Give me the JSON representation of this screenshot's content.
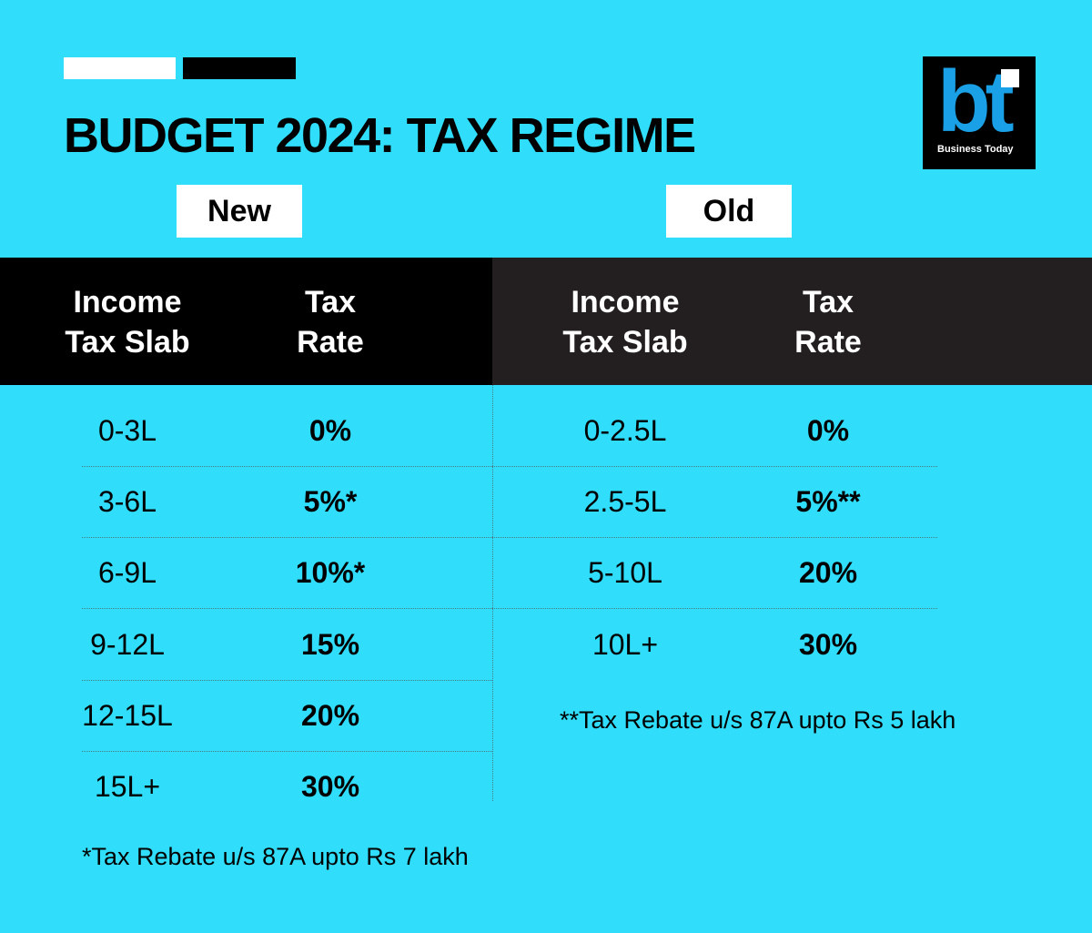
{
  "header": {
    "title": "BUDGET 2024: TAX REGIME"
  },
  "logo": {
    "mark": "bt",
    "name": "Business Today"
  },
  "tables": [
    {
      "label": "New",
      "columns": [
        "Income Tax Slab",
        "Tax Rate"
      ],
      "rows": [
        [
          "0-3L",
          "0%"
        ],
        [
          "3-6L",
          "5%*"
        ],
        [
          "6-9L",
          "10%*"
        ],
        [
          "9-12L",
          "15%"
        ],
        [
          "12-15L",
          "20%"
        ],
        [
          "15L+",
          "30%"
        ]
      ],
      "footnote": "*Tax Rebate u/s 87A upto Rs 7 lakh"
    },
    {
      "label": "Old",
      "columns": [
        "Income Tax Slab",
        "Tax Rate"
      ],
      "rows": [
        [
          "0-2.5L",
          "0%"
        ],
        [
          "2.5-5L",
          "5%**"
        ],
        [
          "5-10L",
          "20%"
        ],
        [
          "10L+",
          "30%"
        ]
      ],
      "footnote": "**Tax Rebate u/s 87A upto Rs 5 lakh"
    }
  ]
}
